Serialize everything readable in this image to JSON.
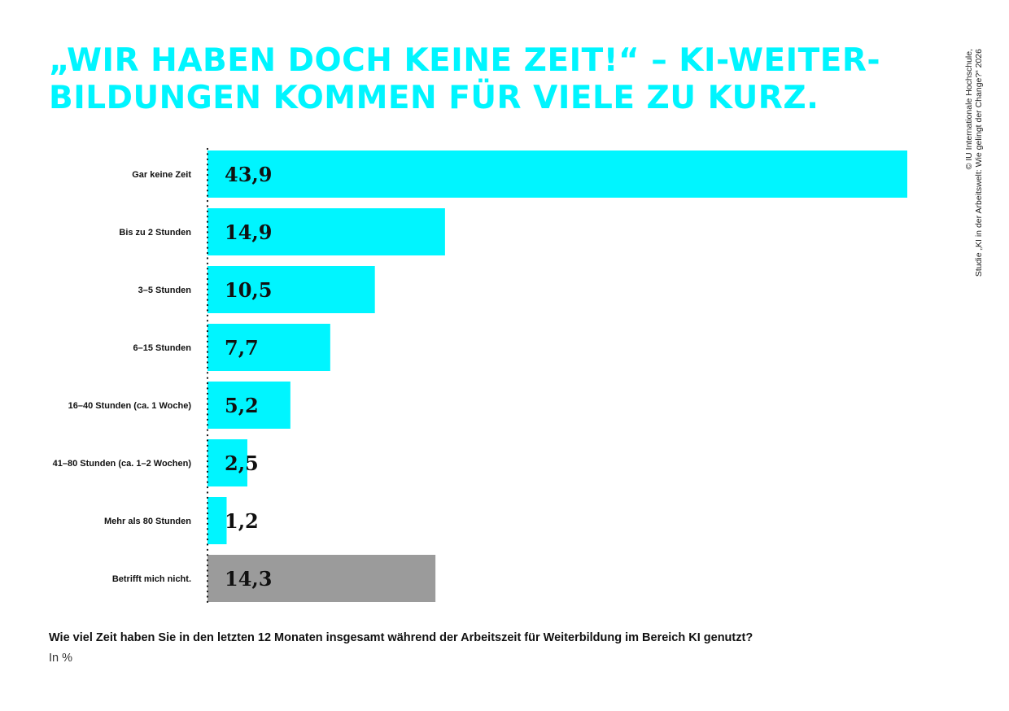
{
  "header": {
    "title_line1": "„Wir haben doch keine Zeit!“ – KI-Weiter-",
    "title_line2": "bildungen kommen für viele zu kurz."
  },
  "credit": {
    "line1": "© IU Internationale Hochschule,",
    "line2": "Studie „KI in der Arbeitswelt: Wie gelingt der Change?“ 2026"
  },
  "footer": {
    "question": "Wie viel Zeit haben Sie in den letzten 12 Monaten insgesamt während der Arbeitszeit für Weiterbildung im Bereich KI genutzt?",
    "unit": "In %"
  },
  "colors": {
    "accent": "#00f5ff",
    "neutral": "#9b9b9b",
    "text": "#111111"
  },
  "chart_data": {
    "type": "bar",
    "orientation": "horizontal",
    "categories": [
      "Gar keine Zeit",
      "Bis zu 2 Stunden",
      "3–5 Stunden",
      "6–15 Stunden",
      "16–40 Stunden (ca. 1 Woche)",
      "41–80 Stunden (ca. 1–2 Wochen)",
      "Mehr als 80 Stunden",
      "Betrifft mich nicht."
    ],
    "values": [
      43.9,
      14.9,
      10.5,
      7.7,
      5.2,
      2.5,
      1.2,
      14.3
    ],
    "value_labels": [
      "43,9",
      "14,9",
      "10,5",
      "7,7",
      "5,2",
      "2,5",
      "1,2",
      "14,3"
    ],
    "bar_colors": [
      "#00f5ff",
      "#00f5ff",
      "#00f5ff",
      "#00f5ff",
      "#00f5ff",
      "#00f5ff",
      "#00f5ff",
      "#9b9b9b"
    ],
    "xlim": [
      0,
      43.9
    ],
    "grid": false,
    "legend": "none"
  }
}
